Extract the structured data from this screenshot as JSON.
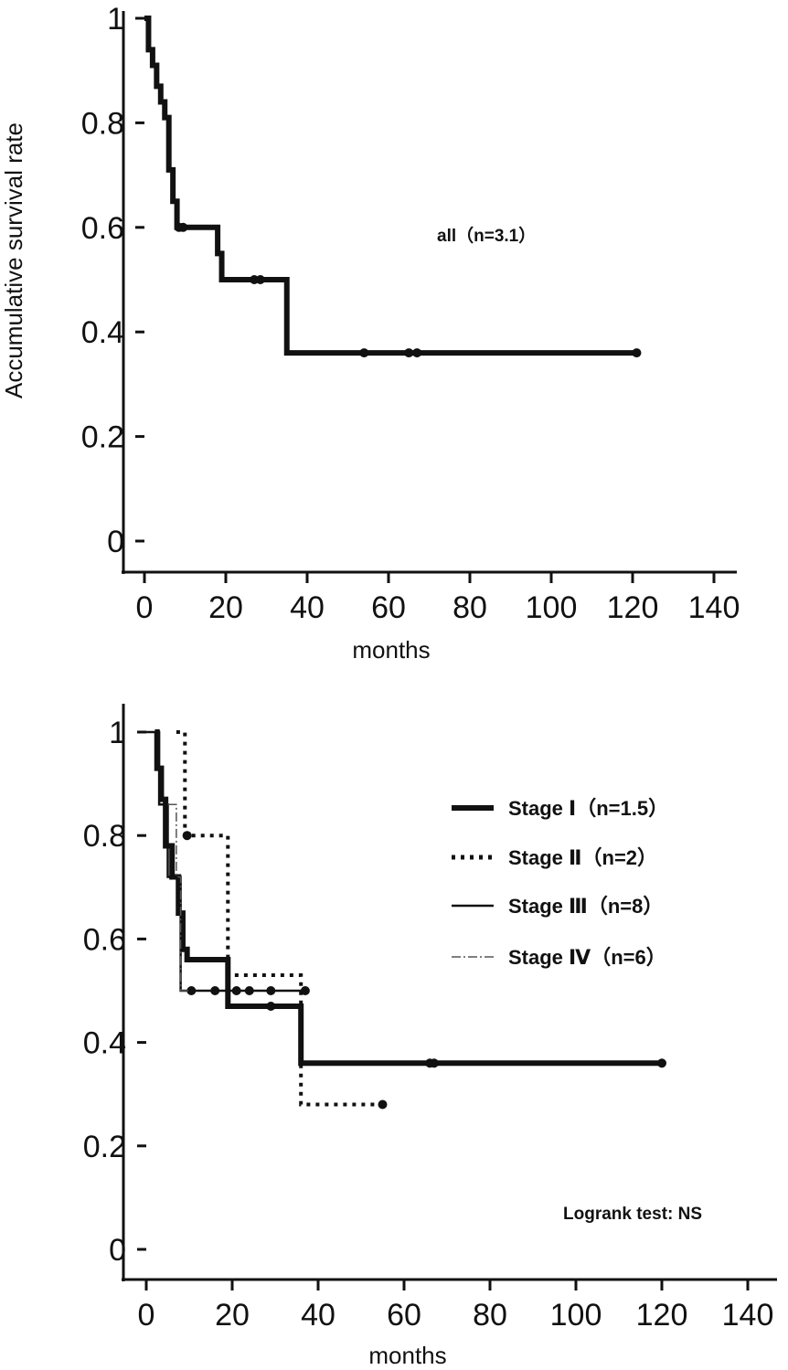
{
  "chart_data": [
    {
      "type": "line",
      "subtype": "kaplan-meier",
      "ylabel": "Accumulative survival rate",
      "xlabel": "months",
      "xlim": [
        0,
        140
      ],
      "ylim": [
        0,
        1
      ],
      "xticks": [
        "0",
        "20",
        "40",
        "60",
        "80",
        "100",
        "120",
        "140"
      ],
      "yticks": [
        "0",
        "0.2",
        "0.4",
        "0.6",
        "0.8",
        "1"
      ],
      "annotation": "all（n=3.1）",
      "series": [
        {
          "name": "",
          "color": "#111111",
          "style": "solid-thick",
          "steps": [
            [
              0,
              1.0
            ],
            [
              1,
              0.94
            ],
            [
              2,
              0.91
            ],
            [
              3,
              0.87
            ],
            [
              4,
              0.84
            ],
            [
              5,
              0.81
            ],
            [
              6,
              0.71
            ],
            [
              7,
              0.65
            ],
            [
              8,
              0.6
            ],
            [
              18,
              0.55
            ],
            [
              19,
              0.5
            ],
            [
              35,
              0.36
            ],
            [
              121,
              0.36
            ]
          ],
          "censored": [
            [
              8.5,
              0.6
            ],
            [
              9.5,
              0.6
            ],
            [
              27,
              0.5
            ],
            [
              28.5,
              0.5
            ],
            [
              54,
              0.36
            ],
            [
              65,
              0.36
            ],
            [
              67,
              0.36
            ],
            [
              121,
              0.36
            ]
          ]
        }
      ]
    },
    {
      "type": "line",
      "subtype": "kaplan-meier",
      "ylabel": "",
      "xlabel": "months",
      "xlim": [
        0,
        140
      ],
      "ylim": [
        0,
        1
      ],
      "xticks": [
        "0",
        "20",
        "40",
        "60",
        "80",
        "100",
        "120",
        "140"
      ],
      "yticks": [
        "0",
        "0.2",
        "0.4",
        "0.6",
        "0.8",
        "1"
      ],
      "annotation": "Logrank test: NS",
      "legend_position": "right",
      "series": [
        {
          "name": "Stage Ⅰ（n=1.5）",
          "color": "#111111",
          "style": "solid-thick",
          "steps": [
            [
              2,
              1.0
            ],
            [
              2.5,
              0.93
            ],
            [
              3.5,
              0.87
            ],
            [
              4.5,
              0.78
            ],
            [
              6,
              0.72
            ],
            [
              7.5,
              0.65
            ],
            [
              8.5,
              0.58
            ],
            [
              9.5,
              0.56
            ],
            [
              19,
              0.47
            ],
            [
              36,
              0.36
            ],
            [
              120,
              0.36
            ]
          ],
          "censored": [
            [
              29,
              0.47
            ],
            [
              66,
              0.36
            ],
            [
              67,
              0.36
            ],
            [
              120,
              0.36
            ]
          ]
        },
        {
          "name": "Stage Ⅱ（n=2）",
          "color": "#111111",
          "style": "dotted",
          "steps": [
            [
              7,
              1.0
            ],
            [
              9,
              0.8
            ],
            [
              19,
              0.53
            ],
            [
              36,
              0.28
            ],
            [
              55,
              0.28
            ]
          ],
          "censored": [
            [
              9.5,
              0.8
            ],
            [
              55,
              0.28
            ]
          ]
        },
        {
          "name": "Stage Ⅲ（n=8）",
          "color": "#111111",
          "style": "solid-thin",
          "steps": [
            [
              0,
              1.0
            ],
            [
              3,
              0.86
            ],
            [
              5,
              0.72
            ],
            [
              8,
              0.5
            ],
            [
              37,
              0.5
            ]
          ],
          "censored": [
            [
              10.5,
              0.5
            ],
            [
              16,
              0.5
            ],
            [
              21,
              0.5
            ],
            [
              24,
              0.5
            ],
            [
              29,
              0.5
            ],
            [
              37,
              0.5
            ]
          ]
        },
        {
          "name": "Stage Ⅳ（n=6）",
          "color": "#555555",
          "style": "dash-dot",
          "steps": [
            [
              5,
              0.86
            ],
            [
              7,
              0.72
            ],
            [
              8,
              0.5
            ],
            [
              10,
              0.5
            ]
          ],
          "censored": []
        }
      ]
    }
  ]
}
